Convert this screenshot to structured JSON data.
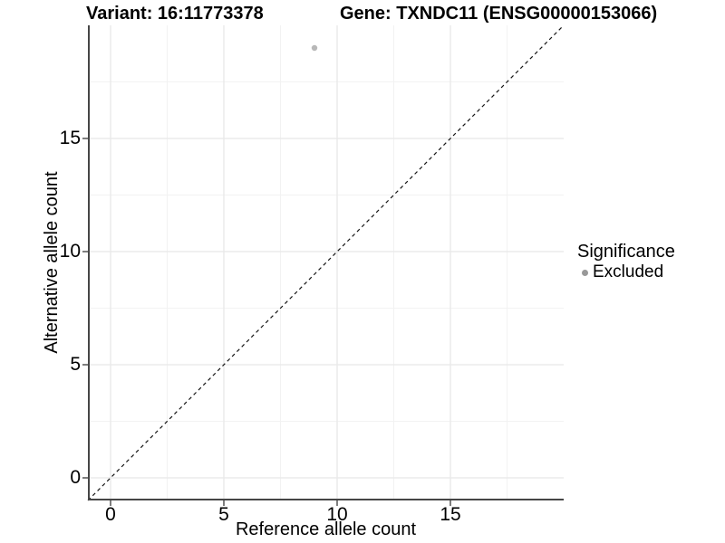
{
  "chart_data": {
    "type": "scatter",
    "titles": {
      "left": "Variant: 16:11773378",
      "right": "Gene: TXNDC11 (ENSG00000153066)"
    },
    "xlabel": "Reference allele count",
    "ylabel": "Alternative allele count",
    "xlim": [
      -1,
      20
    ],
    "ylim": [
      -1,
      20
    ],
    "x_major_ticks": [
      0,
      5,
      10,
      15
    ],
    "y_major_ticks": [
      0,
      5,
      10,
      15
    ],
    "x_minor_ticks": [
      2.5,
      7.5,
      12.5,
      17.5
    ],
    "y_minor_ticks": [
      2.5,
      7.5,
      12.5,
      17.5
    ],
    "grid": "major+minor",
    "points": [
      {
        "x": 9,
        "y": 19,
        "series": "Excluded"
      }
    ],
    "reference_line": {
      "type": "identity",
      "style": "dashed",
      "from": [
        -1,
        -1
      ],
      "to": [
        20,
        20
      ]
    },
    "legend": {
      "title": "Significance",
      "position": "right",
      "entries": [
        {
          "label": "Excluded",
          "marker": "circle",
          "color": "#999999"
        }
      ]
    },
    "colors": {
      "point_fill": "#b8b8b8",
      "grid_major": "#e8e8e8",
      "grid_minor": "#f2f2f2",
      "axis_line": "#464646",
      "dashed_line": "#141414",
      "background": "#ffffff",
      "text": "#000000"
    }
  }
}
